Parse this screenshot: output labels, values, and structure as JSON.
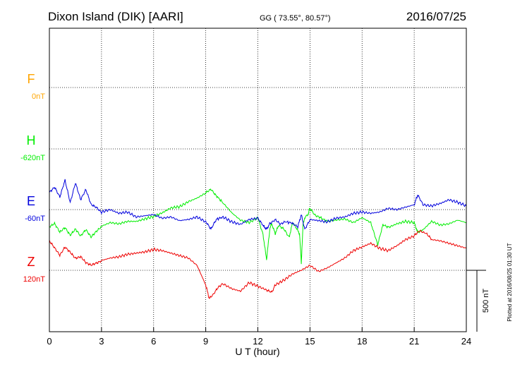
{
  "header": {
    "station": "Dixon Island (DIK)  [AARI]",
    "coords": "GG ( 73.55°,  80.57°)",
    "date": "2016/07/25"
  },
  "side_note": "Plotted at 2016/08/25 01:30 UT",
  "scale_label": "500 nT",
  "colors": {
    "F": "#ffa500",
    "H": "#00ee00",
    "E": "#0000dd",
    "Z": "#ee0000",
    "axis": "#000000"
  },
  "chart_data": {
    "type": "line",
    "xlabel": "U T (hour)",
    "ylabel": "",
    "xlim": [
      0,
      24
    ],
    "x_ticks": [
      "0",
      "3",
      "6",
      "9",
      "12",
      "15",
      "18",
      "21",
      "24"
    ],
    "grid": true,
    "scale_bar_nT": 500,
    "series": [
      {
        "name": "F",
        "offset_label": "0nT",
        "x": [],
        "y": []
      },
      {
        "name": "H",
        "offset_label": "-620nT",
        "x": [
          0,
          0.3,
          0.6,
          0.9,
          1.2,
          1.5,
          1.8,
          2.1,
          2.4,
          2.7,
          3,
          3.5,
          4,
          4.5,
          5,
          5.5,
          6,
          6.5,
          7,
          7.5,
          8,
          8.5,
          9,
          9.3,
          9.6,
          10,
          10.5,
          11,
          11.5,
          12,
          12.3,
          12.5,
          12.7,
          12.8,
          13,
          13.2,
          13.5,
          13.8,
          14,
          14.2,
          14.4,
          14.5,
          14.6,
          14.7,
          14.9,
          15,
          15.3,
          15.6,
          16,
          16.5,
          17,
          17.5,
          18,
          18.5,
          18.9,
          19.2,
          19.5,
          20,
          20.5,
          21,
          21.2,
          21.5,
          22,
          22.5,
          23,
          23.5,
          24
        ],
        "y": [
          -635,
          -610,
          -680,
          -640,
          -700,
          -650,
          -710,
          -660,
          -720,
          -670,
          -630,
          -600,
          -610,
          -590,
          -590,
          -570,
          -550,
          -520,
          -480,
          -470,
          -430,
          -400,
          -360,
          -330,
          -380,
          -440,
          -520,
          -580,
          -600,
          -560,
          -700,
          -900,
          -640,
          -610,
          -690,
          -620,
          -650,
          -720,
          -600,
          -640,
          -690,
          -930,
          -620,
          -560,
          -530,
          -480,
          -540,
          -560,
          -590,
          -580,
          -570,
          -600,
          -560,
          -600,
          -780,
          -620,
          -640,
          -610,
          -590,
          -600,
          -680,
          -660,
          -590,
          -620,
          -610,
          -580,
          -600
        ]
      },
      {
        "name": "E",
        "offset_label": "-60nT",
        "x": [
          0,
          0.3,
          0.6,
          0.9,
          1.2,
          1.5,
          1.8,
          2.1,
          2.4,
          2.7,
          3,
          3.5,
          4,
          4.5,
          5,
          5.5,
          6,
          6.5,
          7,
          7.5,
          8,
          8.5,
          9,
          9.3,
          9.6,
          10,
          10.5,
          11,
          11.5,
          12,
          12.3,
          12.5,
          12.7,
          13,
          13.3,
          13.6,
          14,
          14.3,
          14.5,
          14.7,
          15,
          15.5,
          16,
          16.5,
          17,
          17.5,
          18,
          18.5,
          19,
          19.5,
          20,
          20.5,
          21,
          21.2,
          21.5,
          22,
          22.5,
          23,
          23.5,
          24
        ],
        "y": [
          140,
          180,
          100,
          240,
          60,
          220,
          80,
          160,
          40,
          20,
          -20,
          0,
          -30,
          -20,
          -60,
          -50,
          -40,
          -70,
          -60,
          -90,
          -80,
          -60,
          -100,
          -160,
          -80,
          -60,
          -100,
          -120,
          -80,
          -70,
          -130,
          -160,
          -110,
          -80,
          -120,
          -100,
          -110,
          -140,
          -40,
          -160,
          -80,
          -90,
          -100,
          -70,
          -60,
          -30,
          -20,
          -30,
          -20,
          10,
          0,
          20,
          40,
          120,
          40,
          30,
          50,
          80,
          60,
          30
        ]
      },
      {
        "name": "Z",
        "offset_label": "120nT",
        "x": [
          0,
          0.3,
          0.6,
          0.9,
          1.2,
          1.5,
          1.8,
          2.1,
          2.4,
          2.7,
          3,
          3.5,
          4,
          4.5,
          5,
          5.5,
          6,
          6.5,
          7,
          7.5,
          8,
          8.5,
          9,
          9.2,
          9.4,
          9.7,
          10,
          10.5,
          11,
          11.5,
          12,
          12.5,
          12.8,
          13,
          13.5,
          14,
          14.5,
          15,
          15.5,
          16,
          16.5,
          17,
          17.5,
          18,
          18.5,
          19,
          19.5,
          20,
          20.5,
          21,
          21.3,
          21.7,
          22,
          22.5,
          23,
          23.5,
          24
        ],
        "y": [
          240,
          180,
          120,
          190,
          150,
          100,
          110,
          60,
          40,
          60,
          80,
          100,
          110,
          130,
          140,
          150,
          170,
          160,
          140,
          120,
          100,
          40,
          -120,
          -230,
          -200,
          -140,
          -110,
          -150,
          -170,
          -100,
          -130,
          -160,
          -180,
          -120,
          -80,
          -30,
          0,
          40,
          -10,
          20,
          60,
          100,
          160,
          190,
          220,
          180,
          160,
          200,
          250,
          280,
          320,
          300,
          250,
          240,
          220,
          200,
          180
        ]
      }
    ]
  }
}
